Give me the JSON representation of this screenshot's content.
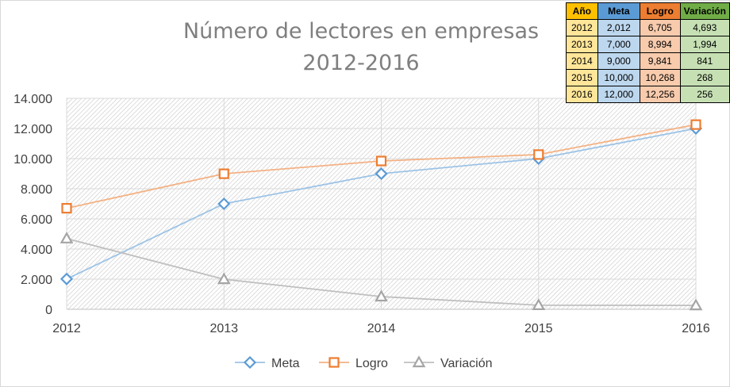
{
  "chart_data": {
    "type": "line",
    "title_lines": [
      "Número de lectores en empresas",
      "2012-2016"
    ],
    "categories": [
      "2012",
      "2013",
      "2014",
      "2015",
      "2016"
    ],
    "y_ticks": [
      "0",
      "2.000",
      "4.000",
      "6.000",
      "8.000",
      "10.000",
      "12.000",
      "14.000"
    ],
    "ylim": [
      0,
      14000
    ],
    "grid": true,
    "legend_position": "bottom",
    "series": [
      {
        "name": "Meta",
        "values": [
          2012,
          7000,
          9000,
          10000,
          12000
        ],
        "color": "#9dc3e6",
        "marker_color": "#5b9bd5",
        "marker": "diamond"
      },
      {
        "name": "Logro",
        "values": [
          6705,
          8994,
          9841,
          10268,
          12256
        ],
        "color": "#f4b183",
        "marker_color": "#ed7d31",
        "marker": "square"
      },
      {
        "name": "Variación",
        "values": [
          4693,
          1994,
          841,
          268,
          256
        ],
        "color": "#bfbfbf",
        "marker_color": "#a5a5a5",
        "marker": "triangle"
      }
    ]
  },
  "table": {
    "headers": [
      "Año",
      "Meta",
      "Logro",
      "Variación"
    ],
    "header_colors": [
      "#ffc000",
      "#5b9bd5",
      "#ed7d31",
      "#70ad47"
    ],
    "cell_colors": [
      "#ffe699",
      "#bdd7ee",
      "#f8cbad",
      "#c6e0b4"
    ],
    "rows": [
      [
        "2012",
        "2,012",
        "6,705",
        "4,693"
      ],
      [
        "2013",
        "7,000",
        "8,994",
        "1,994"
      ],
      [
        "2014",
        "9,000",
        "9,841",
        "841"
      ],
      [
        "2015",
        "10,000",
        "10,268",
        "268"
      ],
      [
        "2016",
        "12,000",
        "12,256",
        "256"
      ]
    ]
  }
}
